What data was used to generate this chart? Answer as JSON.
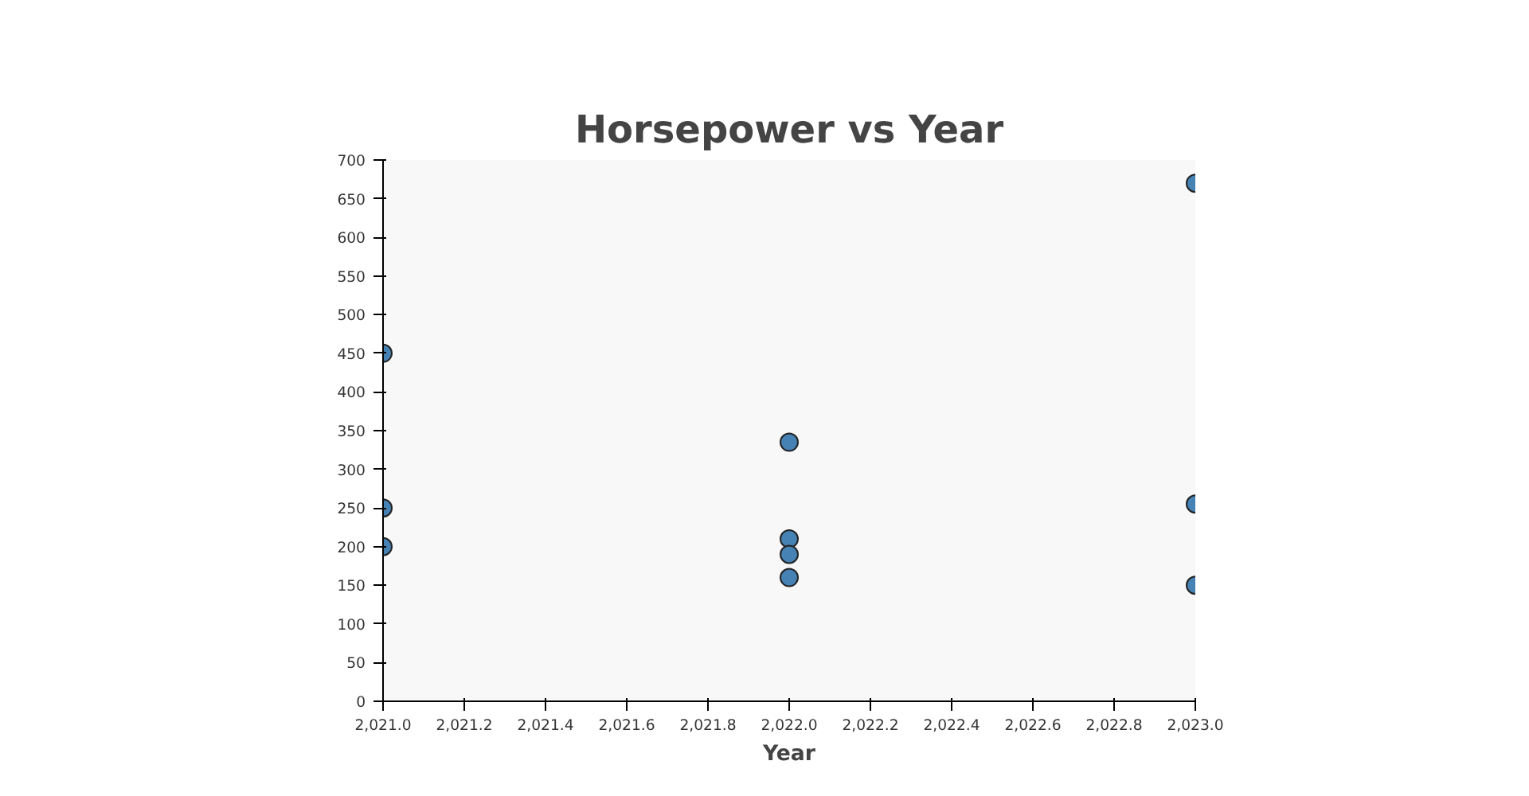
{
  "chart_data": {
    "type": "scatter",
    "title": "Horsepower vs Year",
    "xlabel": "Year",
    "x": [
      2021,
      2021,
      2021,
      2022,
      2022,
      2022,
      2022,
      2023,
      2023,
      2023
    ],
    "values": [
      450,
      250,
      200,
      335,
      210,
      190,
      160,
      670,
      255,
      150
    ],
    "color": "#4682b4",
    "marker": "circle",
    "grid": false,
    "xlim": [
      2021,
      2023
    ],
    "xticks": [
      {
        "value": 2021,
        "label": "2,021.0"
      },
      {
        "value": 2021.2,
        "label": "2,021.2"
      },
      {
        "value": 2021.4,
        "label": "2,021.4"
      },
      {
        "value": 2021.6,
        "label": "2,021.6"
      },
      {
        "value": 2021.8,
        "label": "2,021.8"
      },
      {
        "value": 2022,
        "label": "2,022.0"
      },
      {
        "value": 2022.2,
        "label": "2,022.2"
      },
      {
        "value": 2022.4,
        "label": "2,022.4"
      },
      {
        "value": 2022.6,
        "label": "2,022.6"
      },
      {
        "value": 2022.8,
        "label": "2,022.8"
      },
      {
        "value": 2023,
        "label": "2,023.0"
      }
    ],
    "ylim": [
      0,
      700
    ],
    "yticks": [
      0,
      50,
      100,
      150,
      200,
      250,
      300,
      350,
      400,
      450,
      500,
      550,
      600,
      650,
      700
    ]
  }
}
